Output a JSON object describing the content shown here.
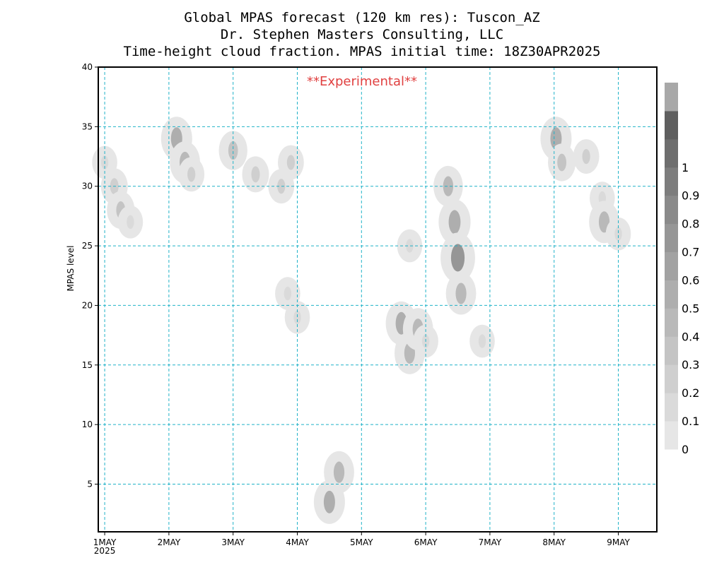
{
  "chart_data": {
    "type": "heatmap",
    "title_lines": [
      "Global MPAS forecast (120 km res): Tuscon_AZ",
      "Dr. Stephen Masters Consulting, LLC",
      "Time-height cloud fraction.   MPAS initial time: 18Z30APR2025"
    ],
    "annotation": "**Experimental**",
    "annotation_color": "#e04040",
    "ylabel": "MPAS level",
    "x_ticks": [
      "1MAY",
      "2MAY",
      "3MAY",
      "4MAY",
      "5MAY",
      "6MAY",
      "7MAY",
      "8MAY",
      "9MAY"
    ],
    "x_year_label": "2025",
    "xlim": [
      -0.1,
      8.6
    ],
    "ylim": [
      1,
      40
    ],
    "y_ticks": [
      5,
      10,
      15,
      20,
      25,
      30,
      35,
      40
    ],
    "grid": true,
    "grid_color": "#20b2c8",
    "colorbar": {
      "labels": [
        "0",
        "0.1",
        "0.2",
        "0.3",
        "0.4",
        "0.5",
        "0.6",
        "0.7",
        "0.8",
        "0.9",
        "1"
      ],
      "colors": [
        "#e6e6e6",
        "#dadada",
        "#cfcfcf",
        "#c4c4c4",
        "#b9b9b9",
        "#aeaeae",
        "#a2a2a2",
        "#969696",
        "#8a8a8a",
        "#7d7d7d",
        "#6e6e6e",
        "#5f5f5f",
        "#a8a8a8"
      ]
    },
    "cloud_features": [
      {
        "x": 0.0,
        "y": 32.0,
        "fraction": 0.15
      },
      {
        "x": 0.15,
        "y": 30.0,
        "fraction": 0.25
      },
      {
        "x": 0.25,
        "y": 28.0,
        "fraction": 0.3
      },
      {
        "x": 0.4,
        "y": 27.0,
        "fraction": 0.15
      },
      {
        "x": 1.12,
        "y": 34.0,
        "fraction": 0.5
      },
      {
        "x": 1.25,
        "y": 32.0,
        "fraction": 0.45
      },
      {
        "x": 1.35,
        "y": 31.0,
        "fraction": 0.2
      },
      {
        "x": 2.0,
        "y": 33.0,
        "fraction": 0.35
      },
      {
        "x": 2.35,
        "y": 31.0,
        "fraction": 0.25
      },
      {
        "x": 2.75,
        "y": 30.0,
        "fraction": 0.2
      },
      {
        "x": 2.9,
        "y": 32.0,
        "fraction": 0.2
      },
      {
        "x": 2.85,
        "y": 21.0,
        "fraction": 0.15
      },
      {
        "x": 3.0,
        "y": 19.0,
        "fraction": 0.15
      },
      {
        "x": 3.5,
        "y": 3.5,
        "fraction": 0.5
      },
      {
        "x": 3.65,
        "y": 6.0,
        "fraction": 0.45
      },
      {
        "x": 4.62,
        "y": 18.5,
        "fraction": 0.5
      },
      {
        "x": 4.75,
        "y": 16.0,
        "fraction": 0.45
      },
      {
        "x": 4.88,
        "y": 18.0,
        "fraction": 0.45
      },
      {
        "x": 4.75,
        "y": 25.0,
        "fraction": 0.15
      },
      {
        "x": 5.0,
        "y": 17.0,
        "fraction": 0.15
      },
      {
        "x": 5.35,
        "y": 30.0,
        "fraction": 0.4
      },
      {
        "x": 5.45,
        "y": 27.0,
        "fraction": 0.55
      },
      {
        "x": 5.5,
        "y": 24.0,
        "fraction": 0.7
      },
      {
        "x": 5.55,
        "y": 21.0,
        "fraction": 0.45
      },
      {
        "x": 5.88,
        "y": 17.0,
        "fraction": 0.15
      },
      {
        "x": 7.03,
        "y": 34.0,
        "fraction": 0.5
      },
      {
        "x": 7.12,
        "y": 32.0,
        "fraction": 0.3
      },
      {
        "x": 7.5,
        "y": 32.5,
        "fraction": 0.2
      },
      {
        "x": 7.75,
        "y": 29.0,
        "fraction": 0.15
      },
      {
        "x": 7.78,
        "y": 27.0,
        "fraction": 0.45
      },
      {
        "x": 8.0,
        "y": 26.0,
        "fraction": 0.15
      }
    ]
  }
}
